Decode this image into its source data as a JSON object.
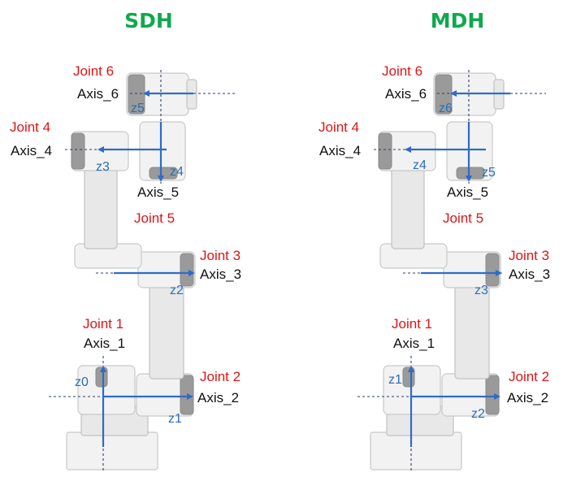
{
  "panels": [
    {
      "title": "SDH",
      "joints": {
        "j6": {
          "joint": "Joint 6",
          "axis": "Axis_6"
        },
        "j4": {
          "joint": "Joint 4",
          "axis": "Axis_4"
        },
        "j5": {
          "joint": "Joint 5",
          "axis": "Axis_5"
        },
        "j3": {
          "joint": "Joint 3",
          "axis": "Axis_3"
        },
        "j1": {
          "joint": "Joint 1",
          "axis": "Axis_1"
        },
        "j2": {
          "joint": "Joint 2",
          "axis": "Axis_2"
        }
      },
      "frames": {
        "a": "z5",
        "b": "z3",
        "c": "z4",
        "d": "z2",
        "e": "z0",
        "f": "z1"
      }
    },
    {
      "title": "MDH",
      "joints": {
        "j6": {
          "joint": "Joint 6",
          "axis": "Axis_6"
        },
        "j4": {
          "joint": "Joint 4",
          "axis": "Axis_4"
        },
        "j5": {
          "joint": "Joint 5",
          "axis": "Axis_5"
        },
        "j3": {
          "joint": "Joint 3",
          "axis": "Axis_3"
        },
        "j1": {
          "joint": "Joint 1",
          "axis": "Axis_1"
        },
        "j2": {
          "joint": "Joint 2",
          "axis": "Axis_2"
        }
      },
      "frames": {
        "a": "z6",
        "b": "z4",
        "c": "z5",
        "d": "z3",
        "e": "z1",
        "f": "z2"
      }
    }
  ],
  "colors": {
    "title": "#10a84e",
    "joint": "#e01414",
    "frame_arrow": "#2f6bc6"
  }
}
